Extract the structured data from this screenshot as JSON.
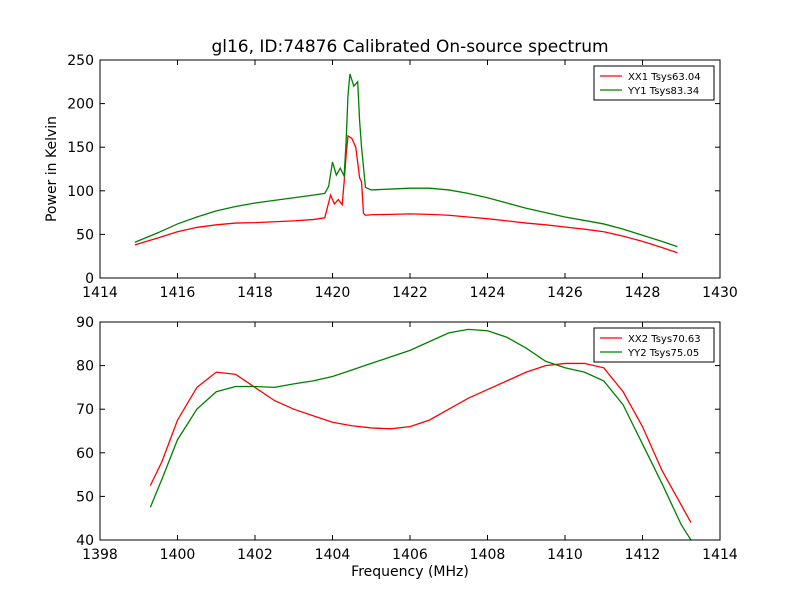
{
  "title": "gl16, ID:74876 Calibrated On-source spectrum",
  "chart_data": [
    {
      "type": "line",
      "ylabel": "Power in Kelvin",
      "xlabel": "",
      "xlim": [
        1414,
        1430
      ],
      "ylim": [
        0,
        250
      ],
      "xticks": [
        "1414",
        "1416",
        "1418",
        "1420",
        "1422",
        "1424",
        "1426",
        "1428",
        "1430"
      ],
      "yticks": [
        "0",
        "50",
        "100",
        "150",
        "200",
        "250"
      ],
      "legend_position": "top-right",
      "series": [
        {
          "name": "XX1 Tsys63.04",
          "color": "#ff0000",
          "x": [
            1414.9,
            1415.5,
            1416.0,
            1416.5,
            1417.0,
            1417.5,
            1418.0,
            1418.5,
            1419.0,
            1419.5,
            1419.8,
            1419.95,
            1420.05,
            1420.15,
            1420.25,
            1420.3,
            1420.35,
            1420.4,
            1420.5,
            1420.6,
            1420.7,
            1420.75,
            1420.8,
            1420.85,
            1421.0,
            1421.5,
            1422.0,
            1422.5,
            1423.0,
            1423.5,
            1424.0,
            1424.5,
            1425.0,
            1425.5,
            1426.0,
            1426.5,
            1427.0,
            1427.5,
            1428.0,
            1428.5,
            1428.9
          ],
          "y": [
            38,
            46,
            53,
            58,
            61,
            63,
            63.5,
            64.5,
            65.5,
            67,
            69,
            95,
            85,
            90,
            84,
            110,
            140,
            163,
            160,
            150,
            115,
            110,
            74,
            72,
            72.5,
            73,
            73.5,
            73,
            72,
            70,
            68,
            65.5,
            63,
            61,
            58.5,
            56,
            53,
            48,
            42,
            35,
            29
          ]
        },
        {
          "name": "YY1 Tsys83.34",
          "color": "#008000",
          "x": [
            1414.9,
            1415.5,
            1416.0,
            1416.5,
            1417.0,
            1417.5,
            1418.0,
            1418.5,
            1419.0,
            1419.5,
            1419.8,
            1419.9,
            1420.0,
            1420.1,
            1420.2,
            1420.3,
            1420.35,
            1420.4,
            1420.45,
            1420.55,
            1420.65,
            1420.7,
            1420.75,
            1420.85,
            1421.0,
            1421.5,
            1422.0,
            1422.5,
            1423.0,
            1423.5,
            1424.0,
            1424.5,
            1425.0,
            1425.5,
            1426.0,
            1426.5,
            1427.0,
            1427.5,
            1428.0,
            1428.5,
            1428.9
          ],
          "y": [
            41,
            52,
            62,
            70,
            77,
            82,
            86,
            89,
            92,
            95,
            97,
            105,
            133,
            118,
            126,
            117,
            155,
            210,
            234,
            220,
            225,
            180,
            150,
            104,
            101,
            102,
            103,
            103,
            101,
            97,
            92,
            86,
            80,
            75,
            70,
            66,
            62,
            56,
            49,
            42,
            36
          ]
        }
      ]
    },
    {
      "type": "line",
      "ylabel": "",
      "xlabel": "Frequency (MHz)",
      "xlim": [
        1398,
        1414
      ],
      "ylim": [
        40,
        90
      ],
      "xticks": [
        "1398",
        "1400",
        "1402",
        "1404",
        "1406",
        "1408",
        "1410",
        "1412",
        "1414"
      ],
      "yticks": [
        "40",
        "50",
        "60",
        "70",
        "80",
        "90"
      ],
      "legend_position": "top-right",
      "series": [
        {
          "name": "XX2 Tsys70.63",
          "color": "#ff0000",
          "x": [
            1399.3,
            1399.6,
            1400.0,
            1400.5,
            1401.0,
            1401.5,
            1402.0,
            1402.5,
            1403.0,
            1403.5,
            1404.0,
            1404.5,
            1405.0,
            1405.5,
            1406.0,
            1406.5,
            1407.0,
            1407.5,
            1408.0,
            1408.5,
            1409.0,
            1409.5,
            1410.0,
            1410.5,
            1411.0,
            1411.5,
            1412.0,
            1412.5,
            1413.0,
            1413.25
          ],
          "y": [
            52.5,
            58,
            67.5,
            75,
            78.5,
            78,
            75,
            72,
            70,
            68.5,
            67,
            66.2,
            65.7,
            65.5,
            66,
            67.5,
            70,
            72.5,
            74.5,
            76.5,
            78.5,
            80,
            80.5,
            80.5,
            79.5,
            74,
            66,
            56,
            48,
            44
          ]
        },
        {
          "name": "YY2 Tsys75.05",
          "color": "#008000",
          "x": [
            1399.3,
            1399.6,
            1400.0,
            1400.5,
            1401.0,
            1401.5,
            1402.0,
            1402.5,
            1403.0,
            1403.5,
            1404.0,
            1404.5,
            1405.0,
            1405.5,
            1406.0,
            1406.5,
            1407.0,
            1407.5,
            1408.0,
            1408.5,
            1409.0,
            1409.5,
            1410.0,
            1410.5,
            1411.0,
            1411.5,
            1412.0,
            1412.5,
            1413.0,
            1413.25
          ],
          "y": [
            47.5,
            54,
            63,
            70,
            74,
            75.2,
            75.2,
            75,
            75.8,
            76.5,
            77.5,
            79,
            80.5,
            82,
            83.5,
            85.5,
            87.5,
            88.3,
            88,
            86.5,
            84,
            81,
            79.5,
            78.5,
            76.5,
            71,
            62,
            53,
            43.5,
            40
          ]
        }
      ]
    }
  ]
}
